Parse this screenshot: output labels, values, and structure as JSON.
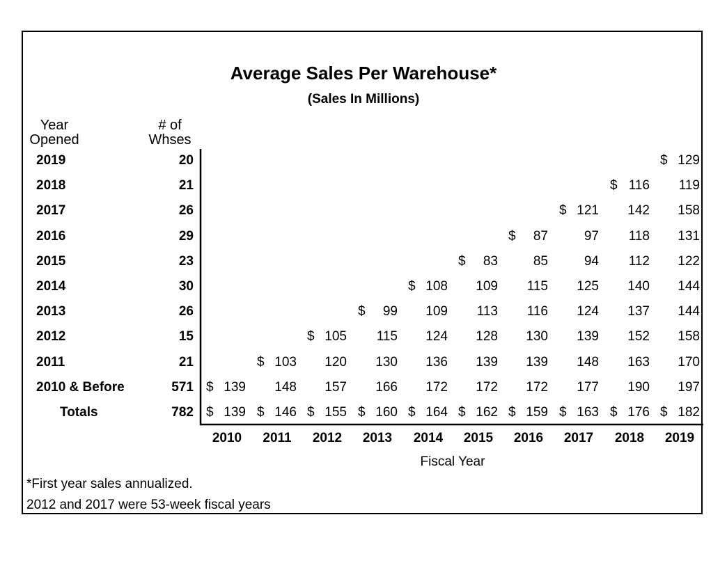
{
  "chart_data": {
    "type": "table",
    "title": "Average Sales Per Warehouse*",
    "subtitle": "(Sales In Millions)",
    "row_header_1": "Year\nOpened",
    "row_header_2": "# of\nWhses",
    "xlabel": "Fiscal Year",
    "columns": [
      "2010",
      "2011",
      "2012",
      "2013",
      "2014",
      "2015",
      "2016",
      "2017",
      "2018",
      "2019"
    ],
    "rows": [
      {
        "label": "2019",
        "count": "20",
        "values": [
          null,
          null,
          null,
          null,
          null,
          null,
          null,
          null,
          null,
          129
        ]
      },
      {
        "label": "2018",
        "count": "21",
        "values": [
          null,
          null,
          null,
          null,
          null,
          null,
          null,
          null,
          116,
          119
        ]
      },
      {
        "label": "2017",
        "count": "26",
        "values": [
          null,
          null,
          null,
          null,
          null,
          null,
          null,
          121,
          142,
          158
        ]
      },
      {
        "label": "2016",
        "count": "29",
        "values": [
          null,
          null,
          null,
          null,
          null,
          null,
          87,
          97,
          118,
          131
        ]
      },
      {
        "label": "2015",
        "count": "23",
        "values": [
          null,
          null,
          null,
          null,
          null,
          83,
          85,
          94,
          112,
          122
        ]
      },
      {
        "label": "2014",
        "count": "30",
        "values": [
          null,
          null,
          null,
          null,
          108,
          109,
          115,
          125,
          140,
          144
        ]
      },
      {
        "label": "2013",
        "count": "26",
        "values": [
          null,
          null,
          null,
          99,
          109,
          113,
          116,
          124,
          137,
          144
        ]
      },
      {
        "label": "2012",
        "count": "15",
        "values": [
          null,
          null,
          105,
          115,
          124,
          128,
          130,
          139,
          152,
          158
        ]
      },
      {
        "label": "2011",
        "count": "21",
        "values": [
          null,
          103,
          120,
          130,
          136,
          139,
          139,
          148,
          163,
          170
        ]
      },
      {
        "label": "2010 & Before",
        "count": "571",
        "values": [
          139,
          148,
          157,
          166,
          172,
          172,
          172,
          177,
          190,
          197
        ]
      }
    ],
    "totals": {
      "label": "Totals",
      "count": "782",
      "values": [
        139,
        146,
        155,
        160,
        164,
        162,
        159,
        163,
        176,
        182
      ]
    },
    "currency_symbol": "$"
  },
  "footnotes": [
    "*First year sales annualized.",
    "2012 and 2017 were 53-week fiscal years"
  ]
}
